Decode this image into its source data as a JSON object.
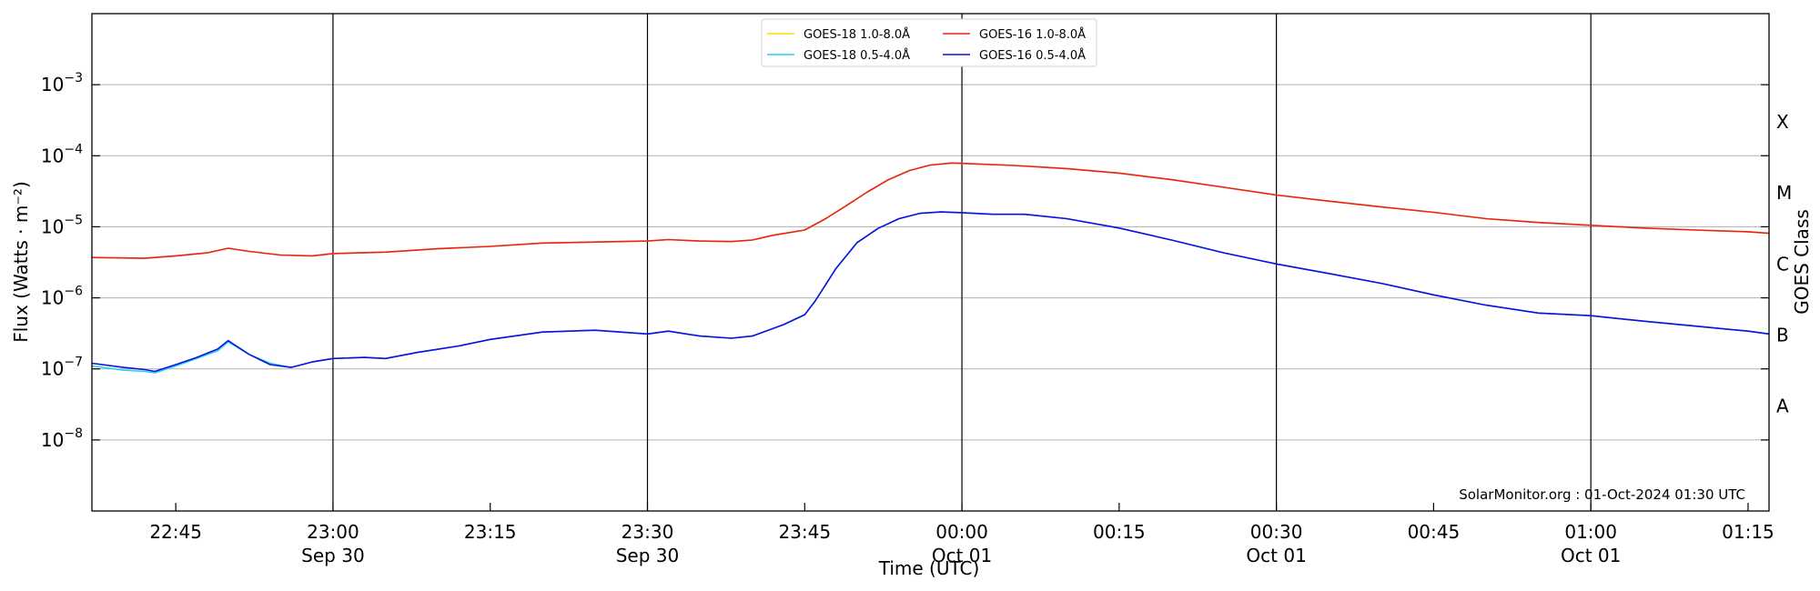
{
  "chart_data": {
    "type": "line",
    "credit": "SolarMonitor.org : 01-Oct-2024 01:30 UTC",
    "xlabel": "Time (UTC)",
    "ylabel": "Flux (Watts · m⁻²)",
    "right_label": "GOES Class",
    "y_scale": "log",
    "ylim": [
      "1e-9",
      "1e-2"
    ],
    "xlim": [
      "2024-09-30 22:37",
      "2024-10-01 01:17"
    ],
    "grid": "horizontal at decades",
    "legend_position": "top-center",
    "y_ticks": [
      {
        "value": "1e-8",
        "base": "10",
        "exp": "−8"
      },
      {
        "value": "1e-7",
        "base": "10",
        "exp": "−7"
      },
      {
        "value": "1e-6",
        "base": "10",
        "exp": "−6"
      },
      {
        "value": "1e-5",
        "base": "10",
        "exp": "−5"
      },
      {
        "value": "1e-4",
        "base": "10",
        "exp": "−4"
      },
      {
        "value": "1e-3",
        "base": "10",
        "exp": "−3"
      }
    ],
    "class_labels": [
      {
        "label": "A",
        "value": "3e-8"
      },
      {
        "label": "B",
        "value": "3e-7"
      },
      {
        "label": "C",
        "value": "3e-6"
      },
      {
        "label": "M",
        "value": "3e-5"
      },
      {
        "label": "X",
        "value": "3e-4"
      }
    ],
    "x_ticks": [
      {
        "time": "2024-09-30 22:45",
        "label": "22:45",
        "sublabel": ""
      },
      {
        "time": "2024-09-30 23:00",
        "label": "23:00",
        "sublabel": "Sep 30"
      },
      {
        "time": "2024-09-30 23:15",
        "label": "23:15",
        "sublabel": ""
      },
      {
        "time": "2024-09-30 23:30",
        "label": "23:30",
        "sublabel": "Sep 30"
      },
      {
        "time": "2024-09-30 23:45",
        "label": "23:45",
        "sublabel": ""
      },
      {
        "time": "2024-10-01 00:00",
        "label": "00:00",
        "sublabel": "Oct 01"
      },
      {
        "time": "2024-10-01 00:15",
        "label": "00:15",
        "sublabel": ""
      },
      {
        "time": "2024-10-01 00:30",
        "label": "00:30",
        "sublabel": "Oct 01"
      },
      {
        "time": "2024-10-01 00:45",
        "label": "00:45",
        "sublabel": ""
      },
      {
        "time": "2024-10-01 01:00",
        "label": "01:00",
        "sublabel": "Oct 01"
      },
      {
        "time": "2024-10-01 01:15",
        "label": "01:15",
        "sublabel": ""
      }
    ],
    "vertical_lines": [
      "2024-09-30 23:00",
      "2024-09-30 23:30",
      "2024-10-01 00:00",
      "2024-10-01 00:30",
      "2024-10-01 01:00"
    ],
    "series": [
      {
        "name": "GOES-18 1.0-8.0Å",
        "color": "#ffd700",
        "x": [
          "2024-09-30 22:37",
          "2024-09-30 22:42",
          "2024-09-30 22:45",
          "2024-09-30 22:48",
          "2024-09-30 22:50",
          "2024-09-30 22:52",
          "2024-09-30 22:55",
          "2024-09-30 22:58",
          "2024-09-30 23:00",
          "2024-09-30 23:05",
          "2024-09-30 23:10",
          "2024-09-30 23:15",
          "2024-09-30 23:20",
          "2024-09-30 23:25",
          "2024-09-30 23:30",
          "2024-09-30 23:32",
          "2024-09-30 23:35",
          "2024-09-30 23:38",
          "2024-09-30 23:40",
          "2024-09-30 23:42",
          "2024-09-30 23:45",
          "2024-09-30 23:47",
          "2024-09-30 23:49",
          "2024-09-30 23:51",
          "2024-09-30 23:53",
          "2024-09-30 23:55",
          "2024-09-30 23:57",
          "2024-09-30 23:59",
          "2024-10-01 00:00",
          "2024-10-01 00:05",
          "2024-10-01 00:10",
          "2024-10-01 00:15",
          "2024-10-01 00:20",
          "2024-10-01 00:25",
          "2024-10-01 00:30",
          "2024-10-01 00:35",
          "2024-10-01 00:40",
          "2024-10-01 00:45",
          "2024-10-01 00:50",
          "2024-10-01 00:55",
          "2024-10-01 01:00",
          "2024-10-01 01:05",
          "2024-10-01 01:10",
          "2024-10-01 01:15",
          "2024-10-01 01:17"
        ],
        "y": [
          "3.7e-6",
          "3.6e-6",
          "3.9e-6",
          "4.3e-6",
          "5.0e-6",
          "4.5e-6",
          "4.0e-6",
          "3.9e-6",
          "4.2e-6",
          "4.4e-6",
          "4.9e-6",
          "5.3e-6",
          "5.9e-6",
          "6.1e-6",
          "6.3e-6",
          "6.6e-6",
          "6.3e-6",
          "6.2e-6",
          "6.5e-6",
          "7.6e-6",
          "9.0e-6",
          "1.3e-5",
          "2.0e-5",
          "3.1e-5",
          "4.6e-5",
          "6.2e-5",
          "7.4e-5",
          "7.9e-5",
          "7.8e-5",
          "7.3e-5",
          "6.6e-5",
          "5.7e-5",
          "4.6e-5",
          "3.6e-5",
          "2.8e-5",
          "2.3e-5",
          "1.9e-5",
          "1.6e-5",
          "1.3e-5",
          "1.15e-5",
          "1.05e-5",
          "9.6e-6",
          "9.0e-6",
          "8.5e-6",
          "8.1e-6"
        ]
      },
      {
        "name": "GOES-16 1.0-8.0Å",
        "color": "#e8231c",
        "x": [
          "2024-09-30 22:37",
          "2024-09-30 22:42",
          "2024-09-30 22:45",
          "2024-09-30 22:48",
          "2024-09-30 22:50",
          "2024-09-30 22:52",
          "2024-09-30 22:55",
          "2024-09-30 22:58",
          "2024-09-30 23:00",
          "2024-09-30 23:05",
          "2024-09-30 23:10",
          "2024-09-30 23:15",
          "2024-09-30 23:20",
          "2024-09-30 23:25",
          "2024-09-30 23:30",
          "2024-09-30 23:32",
          "2024-09-30 23:35",
          "2024-09-30 23:38",
          "2024-09-30 23:40",
          "2024-09-30 23:42",
          "2024-09-30 23:45",
          "2024-09-30 23:47",
          "2024-09-30 23:49",
          "2024-09-30 23:51",
          "2024-09-30 23:53",
          "2024-09-30 23:55",
          "2024-09-30 23:57",
          "2024-09-30 23:59",
          "2024-10-01 00:00",
          "2024-10-01 00:05",
          "2024-10-01 00:10",
          "2024-10-01 00:15",
          "2024-10-01 00:20",
          "2024-10-01 00:25",
          "2024-10-01 00:30",
          "2024-10-01 00:35",
          "2024-10-01 00:40",
          "2024-10-01 00:45",
          "2024-10-01 00:50",
          "2024-10-01 00:55",
          "2024-10-01 01:00",
          "2024-10-01 01:05",
          "2024-10-01 01:10",
          "2024-10-01 01:15",
          "2024-10-01 01:17"
        ],
        "y": [
          "3.7e-6",
          "3.6e-6",
          "3.9e-6",
          "4.3e-6",
          "5.0e-6",
          "4.5e-6",
          "4.0e-6",
          "3.9e-6",
          "4.2e-6",
          "4.4e-6",
          "4.9e-6",
          "5.3e-6",
          "5.9e-6",
          "6.1e-6",
          "6.3e-6",
          "6.6e-6",
          "6.3e-6",
          "6.2e-6",
          "6.5e-6",
          "7.6e-6",
          "9.0e-6",
          "1.3e-5",
          "2.0e-5",
          "3.1e-5",
          "4.6e-5",
          "6.2e-5",
          "7.4e-5",
          "7.9e-5",
          "7.8e-5",
          "7.3e-5",
          "6.6e-5",
          "5.7e-5",
          "4.6e-5",
          "3.6e-5",
          "2.8e-5",
          "2.3e-5",
          "1.9e-5",
          "1.6e-5",
          "1.3e-5",
          "1.15e-5",
          "1.05e-5",
          "9.6e-6",
          "9.0e-6",
          "8.5e-6",
          "8.1e-6"
        ]
      },
      {
        "name": "GOES-18 0.5-4.0Å",
        "color": "#22d3ee",
        "x": [
          "2024-09-30 22:37",
          "2024-09-30 22:40",
          "2024-09-30 22:42",
          "2024-09-30 22:43",
          "2024-09-30 22:45",
          "2024-09-30 22:47",
          "2024-09-30 22:49",
          "2024-09-30 22:50",
          "2024-09-30 22:52",
          "2024-09-30 22:54",
          "2024-09-30 22:56",
          "2024-09-30 22:58",
          "2024-09-30 23:00",
          "2024-09-30 23:03",
          "2024-09-30 23:05",
          "2024-09-30 23:08",
          "2024-09-30 23:12",
          "2024-09-30 23:15",
          "2024-09-30 23:20",
          "2024-09-30 23:25",
          "2024-09-30 23:30",
          "2024-09-30 23:32",
          "2024-09-30 23:35",
          "2024-09-30 23:38",
          "2024-09-30 23:40",
          "2024-09-30 23:43",
          "2024-09-30 23:45",
          "2024-09-30 23:46",
          "2024-09-30 23:48",
          "2024-09-30 23:50",
          "2024-09-30 23:52",
          "2024-09-30 23:54",
          "2024-09-30 23:56",
          "2024-09-30 23:58",
          "2024-10-01 00:00",
          "2024-10-01 00:03",
          "2024-10-01 00:06",
          "2024-10-01 00:10",
          "2024-10-01 00:15",
          "2024-10-01 00:20",
          "2024-10-01 00:25",
          "2024-10-01 00:30",
          "2024-10-01 00:35",
          "2024-10-01 00:40",
          "2024-10-01 00:45",
          "2024-10-01 00:50",
          "2024-10-01 00:55",
          "2024-10-01 01:00",
          "2024-10-01 01:05",
          "2024-10-01 01:10",
          "2024-10-01 01:15",
          "2024-10-01 01:17"
        ],
        "y": [
          "1.1e-7",
          "9.6e-8",
          "9.2e-8",
          "8.8e-8",
          "1.1e-7",
          "1.4e-7",
          "1.8e-7",
          "2.4e-7",
          "1.6e-7",
          "1.2e-7",
          "1.05e-7",
          "1.25e-7",
          "1.4e-7",
          "1.45e-7",
          "1.4e-7",
          "1.7e-7",
          "2.1e-7",
          "2.6e-7",
          "3.3e-7",
          "3.5e-7",
          "3.1e-7",
          "3.4e-7",
          "2.9e-7",
          "2.7e-7",
          "2.9e-7",
          "4.2e-7",
          "5.8e-7",
          "9.0e-7",
          "2.6e-6",
          "6.0e-6",
          "9.5e-6",
          "1.3e-5",
          "1.55e-5",
          "1.62e-5",
          "1.58e-5",
          "1.5e-5",
          "1.5e-5",
          "1.3e-5",
          "9.6e-6",
          "6.5e-6",
          "4.3e-6",
          "3.0e-6",
          "2.2e-6",
          "1.6e-6",
          "1.1e-6",
          "7.9e-7",
          "6.1e-7",
          "5.6e-7",
          "4.7e-7",
          "4.0e-7",
          "3.4e-7",
          "3.1e-7"
        ]
      },
      {
        "name": "GOES-16 0.5-4.0Å",
        "color": "#1010e0",
        "x": [
          "2024-09-30 22:37",
          "2024-09-30 22:40",
          "2024-09-30 22:42",
          "2024-09-30 22:43",
          "2024-09-30 22:45",
          "2024-09-30 22:47",
          "2024-09-30 22:49",
          "2024-09-30 22:50",
          "2024-09-30 22:52",
          "2024-09-30 22:54",
          "2024-09-30 22:56",
          "2024-09-30 22:58",
          "2024-09-30 23:00",
          "2024-09-30 23:03",
          "2024-09-30 23:05",
          "2024-09-30 23:08",
          "2024-09-30 23:12",
          "2024-09-30 23:15",
          "2024-09-30 23:20",
          "2024-09-30 23:25",
          "2024-09-30 23:30",
          "2024-09-30 23:32",
          "2024-09-30 23:35",
          "2024-09-30 23:38",
          "2024-09-30 23:40",
          "2024-09-30 23:43",
          "2024-09-30 23:45",
          "2024-09-30 23:46",
          "2024-09-30 23:48",
          "2024-09-30 23:50",
          "2024-09-30 23:52",
          "2024-09-30 23:54",
          "2024-09-30 23:56",
          "2024-09-30 23:58",
          "2024-10-01 00:00",
          "2024-10-01 00:03",
          "2024-10-01 00:06",
          "2024-10-01 00:10",
          "2024-10-01 00:15",
          "2024-10-01 00:20",
          "2024-10-01 00:25",
          "2024-10-01 00:30",
          "2024-10-01 00:35",
          "2024-10-01 00:40",
          "2024-10-01 00:45",
          "2024-10-01 00:50",
          "2024-10-01 00:55",
          "2024-10-01 01:00",
          "2024-10-01 01:05",
          "2024-10-01 01:10",
          "2024-10-01 01:15",
          "2024-10-01 01:17"
        ],
        "y": [
          "1.2e-7",
          "1.05e-7",
          "9.8e-8",
          "9.2e-8",
          "1.15e-7",
          "1.45e-7",
          "1.9e-7",
          "2.5e-7",
          "1.6e-7",
          "1.15e-7",
          "1.05e-7",
          "1.25e-7",
          "1.4e-7",
          "1.45e-7",
          "1.4e-7",
          "1.7e-7",
          "2.1e-7",
          "2.6e-7",
          "3.3e-7",
          "3.5e-7",
          "3.1e-7",
          "3.4e-7",
          "2.9e-7",
          "2.7e-7",
          "2.9e-7",
          "4.2e-7",
          "5.8e-7",
          "9.0e-7",
          "2.6e-6",
          "6.0e-6",
          "9.5e-6",
          "1.3e-5",
          "1.55e-5",
          "1.62e-5",
          "1.58e-5",
          "1.5e-5",
          "1.5e-5",
          "1.3e-5",
          "9.6e-6",
          "6.5e-6",
          "4.3e-6",
          "3.0e-6",
          "2.2e-6",
          "1.6e-6",
          "1.1e-6",
          "7.9e-7",
          "6.1e-7",
          "5.6e-7",
          "4.7e-7",
          "4.0e-7",
          "3.4e-7",
          "3.1e-7"
        ]
      }
    ],
    "legend": [
      {
        "label": "GOES-18 1.0-8.0Å",
        "color": "#ffd700"
      },
      {
        "label": "GOES-18 0.5-4.0Å",
        "color": "#22d3ee"
      },
      {
        "label": "GOES-16 1.0-8.0Å",
        "color": "#e8231c"
      },
      {
        "label": "GOES-16 0.5-4.0Å",
        "color": "#1010e0"
      }
    ]
  }
}
